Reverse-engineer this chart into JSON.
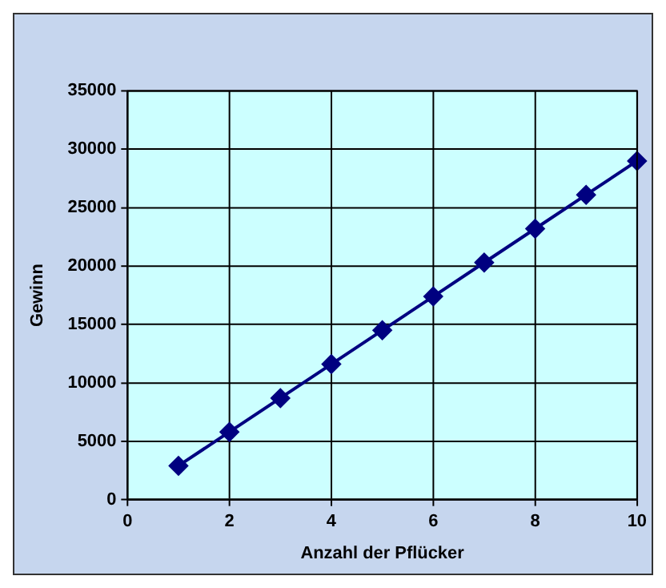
{
  "chart_data": {
    "type": "line",
    "xlabel": "Anzahl der Pflücker",
    "ylabel": "Gewinn",
    "x": [
      1,
      2,
      3,
      4,
      5,
      6,
      7,
      8,
      9,
      10
    ],
    "series": [
      {
        "color": "#000080",
        "values": [
          2900,
          5800,
          8700,
          11600,
          14500,
          17400,
          20300,
          23200,
          26100,
          29000
        ]
      }
    ],
    "xlim": [
      0,
      10
    ],
    "xticks": [
      0,
      2,
      4,
      6,
      8,
      10
    ],
    "ylim": [
      0,
      35000
    ],
    "yticks": [
      0,
      5000,
      10000,
      15000,
      20000,
      25000,
      30000,
      35000
    ],
    "grid": true,
    "legend": false,
    "marker": "diamond",
    "line_style": "solid"
  }
}
